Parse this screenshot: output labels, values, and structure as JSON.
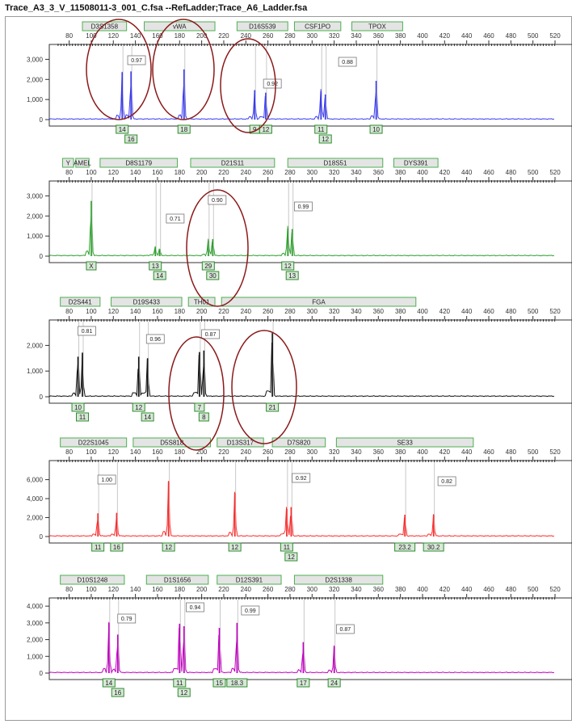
{
  "window": {
    "title": "Trace_A3_3_V_11508011-3_001_C.fsa --RefLadder;Trace_A6_Ladder.fsa"
  },
  "colors": {
    "blue": "#3b3bf0",
    "green": "#2ca02c",
    "black": "#111111",
    "red": "#ff2a2a",
    "magenta": "#c000c0",
    "marker_fill": "#d8e8d8",
    "marker_border": "#4caf50",
    "allele_border": "#2e8b2e",
    "circle": "#8b1a1a"
  },
  "chart_data": [
    {
      "type": "line",
      "dye": "blue",
      "x_ticks": [
        "80",
        "100",
        "120",
        "140",
        "160",
        "180",
        "200",
        "220",
        "240",
        "260",
        "280",
        "300",
        "320",
        "340",
        "360",
        "380",
        "400",
        "420",
        "440",
        "460",
        "480",
        "500",
        "520"
      ],
      "y_ticks": [
        "3,000",
        "2,000",
        "1,000",
        "0"
      ],
      "ylim": [
        0,
        3500
      ],
      "loci": [
        "D3S1358",
        "vWA",
        "D16S539",
        "CSF1PO",
        "TPOX"
      ],
      "ratios": [
        "0.97",
        "0.92",
        "0.88"
      ],
      "peaks": [
        {
          "x": 128,
          "y": 2350,
          "allele": "14"
        },
        {
          "x": 136,
          "y": 2400,
          "allele": "16"
        },
        {
          "x": 184,
          "y": 2500,
          "allele": "18"
        },
        {
          "x": 248,
          "y": 1450,
          "allele": "9"
        },
        {
          "x": 258,
          "y": 1340,
          "allele": "12"
        },
        {
          "x": 308,
          "y": 1400,
          "allele": "11"
        },
        {
          "x": 312,
          "y": 1250,
          "allele": "12"
        },
        {
          "x": 358,
          "y": 1930,
          "allele": "10"
        }
      ]
    },
    {
      "type": "line",
      "dye": "green",
      "x_ticks": [
        "80",
        "100",
        "120",
        "140",
        "160",
        "180",
        "200",
        "220",
        "240",
        "260",
        "280",
        "300",
        "320",
        "340",
        "360",
        "380",
        "400",
        "420",
        "440",
        "460",
        "480",
        "500",
        "520"
      ],
      "y_ticks": [
        "3,000",
        "2,000",
        "1,000",
        "0"
      ],
      "ylim": [
        0,
        3500
      ],
      "loci": [
        "Y",
        "AMEL",
        "D8S1179",
        "D21S11",
        "D18S51",
        "DYS391"
      ],
      "ratios": [
        "0.71",
        "0.90",
        "0.99"
      ],
      "peaks": [
        {
          "x": 100,
          "y": 2750,
          "allele": "X"
        },
        {
          "x": 158,
          "y": 450,
          "allele": "13"
        },
        {
          "x": 162,
          "y": 350,
          "allele": "14"
        },
        {
          "x": 206,
          "y": 750,
          "allele": "29"
        },
        {
          "x": 210,
          "y": 850,
          "allele": "30"
        },
        {
          "x": 278,
          "y": 1380,
          "allele": "12"
        },
        {
          "x": 282,
          "y": 1350,
          "allele": "13"
        }
      ]
    },
    {
      "type": "line",
      "dye": "black",
      "x_ticks": [
        "80",
        "100",
        "120",
        "140",
        "160",
        "180",
        "200",
        "220",
        "240",
        "260",
        "280",
        "300",
        "320",
        "340",
        "360",
        "380",
        "400",
        "420",
        "440",
        "460",
        "480",
        "500",
        "520"
      ],
      "y_ticks": [
        "2,000",
        "1,000",
        "0"
      ],
      "ylim": [
        0,
        2800
      ],
      "loci": [
        "D2S441",
        "D19S433",
        "TH01",
        "FGA"
      ],
      "ratios": [
        "0.81",
        "0.96",
        "0.87"
      ],
      "peaks": [
        {
          "x": 88,
          "y": 1560,
          "allele": "10"
        },
        {
          "x": 92,
          "y": 1700,
          "allele": "11"
        },
        {
          "x": 143,
          "y": 1560,
          "allele": "12"
        },
        {
          "x": 151,
          "y": 1500,
          "allele": "14"
        },
        {
          "x": 198,
          "y": 1740,
          "allele": "7"
        },
        {
          "x": 202,
          "y": 1800,
          "allele": "8"
        },
        {
          "x": 264,
          "y": 2480,
          "allele": "21"
        }
      ]
    },
    {
      "type": "line",
      "dye": "red",
      "x_ticks": [
        "80",
        "100",
        "120",
        "140",
        "160",
        "180",
        "200",
        "220",
        "240",
        "260",
        "280",
        "300",
        "320",
        "340",
        "360",
        "380",
        "400",
        "420",
        "440",
        "460",
        "480",
        "500",
        "520"
      ],
      "y_ticks": [
        "6,000",
        "4,000",
        "2,000",
        "0"
      ],
      "ylim": [
        0,
        7500
      ],
      "loci": [
        "D22S1045",
        "D5S818",
        "D13S317",
        "D7S820",
        "SE33"
      ],
      "ratios": [
        "1.00",
        "0.92",
        "0.82"
      ],
      "peaks": [
        {
          "x": 106,
          "y": 2450,
          "allele": "11"
        },
        {
          "x": 123,
          "y": 2500,
          "allele": "16"
        },
        {
          "x": 170,
          "y": 5800,
          "allele": "12"
        },
        {
          "x": 230,
          "y": 4600,
          "allele": "12"
        },
        {
          "x": 277,
          "y": 2900,
          "allele": "11"
        },
        {
          "x": 281,
          "y": 3100,
          "allele": "12"
        },
        {
          "x": 384,
          "y": 2300,
          "allele": "23.2"
        },
        {
          "x": 410,
          "y": 2300,
          "allele": "30.2"
        }
      ]
    },
    {
      "type": "line",
      "dye": "magenta",
      "x_ticks": [
        "80",
        "100",
        "120",
        "140",
        "160",
        "180",
        "200",
        "220",
        "240",
        "260",
        "280",
        "300",
        "320",
        "340",
        "360",
        "380",
        "400",
        "420",
        "440",
        "460",
        "480",
        "500",
        "520"
      ],
      "y_ticks": [
        "4,000",
        "3,000",
        "2,000",
        "1,000",
        "0"
      ],
      "ylim": [
        0,
        4200
      ],
      "loci": [
        "D10S1248",
        "D1S1656",
        "D12S391",
        "D2S1338"
      ],
      "ratios": [
        "0.79",
        "0.94",
        "0.99",
        "0.87"
      ],
      "peaks": [
        {
          "x": 116,
          "y": 3000,
          "allele": "14"
        },
        {
          "x": 124,
          "y": 2300,
          "allele": "16"
        },
        {
          "x": 180,
          "y": 2950,
          "allele": "11"
        },
        {
          "x": 184,
          "y": 2800,
          "allele": "12"
        },
        {
          "x": 216,
          "y": 2700,
          "allele": "15"
        },
        {
          "x": 232,
          "y": 3000,
          "allele": "18.3"
        },
        {
          "x": 292,
          "y": 1850,
          "allele": "17"
        },
        {
          "x": 320,
          "y": 1600,
          "allele": "24"
        }
      ]
    }
  ]
}
